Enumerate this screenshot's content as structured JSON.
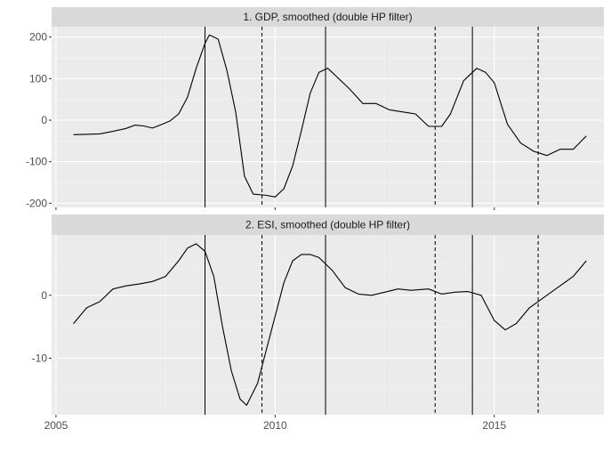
{
  "chart_data": [
    {
      "type": "line",
      "panel_title": "1. GDP, smoothed (double HP filter)",
      "xlim": [
        2004.9,
        2017.5
      ],
      "ylim": [
        -210,
        225
      ],
      "x_ticks": [
        2005,
        2010,
        2015
      ],
      "x_minor_ticks": [
        2007.5,
        2012.5
      ],
      "y_ticks": [
        -200,
        -100,
        0,
        100,
        200
      ],
      "y_tick_labels": [
        "-200",
        "-100",
        "0",
        "100",
        "200"
      ],
      "y_minor_ticks": [
        -150,
        -50,
        50,
        150
      ],
      "grid": true,
      "series": [
        {
          "color": "#000000",
          "x": [
            2005.4,
            2005.7,
            2006.0,
            2006.3,
            2006.6,
            2006.8,
            2007.0,
            2007.2,
            2007.4,
            2007.6,
            2007.8,
            2008.0,
            2008.2,
            2008.4,
            2008.5,
            2008.7,
            2008.9,
            2009.1,
            2009.3,
            2009.5,
            2009.8,
            2010.0,
            2010.2,
            2010.4,
            2010.6,
            2010.8,
            2011.0,
            2011.2,
            2011.4,
            2011.7,
            2012.0,
            2012.3,
            2012.6,
            2012.9,
            2013.2,
            2013.5,
            2013.8,
            2014.0,
            2014.3,
            2014.6,
            2014.8,
            2015.0,
            2015.3,
            2015.6,
            2015.9,
            2016.2,
            2016.5,
            2016.8,
            2017.1
          ],
          "y": [
            -35,
            -34,
            -33,
            -27,
            -20,
            -12,
            -14,
            -19,
            -11,
            -2,
            15,
            55,
            125,
            185,
            205,
            195,
            120,
            20,
            -135,
            -178,
            -181,
            -185,
            -165,
            -110,
            -25,
            65,
            115,
            125,
            105,
            75,
            40,
            40,
            25,
            20,
            15,
            -15,
            -15,
            15,
            95,
            125,
            115,
            90,
            -10,
            -55,
            -75,
            -85,
            -70,
            -70,
            -38
          ]
        }
      ],
      "vlines": [
        {
          "x": 2008.4,
          "style": "solid"
        },
        {
          "x": 2009.7,
          "style": "dashed"
        },
        {
          "x": 2011.15,
          "style": "solid"
        },
        {
          "x": 2013.65,
          "style": "dashed"
        },
        {
          "x": 2014.5,
          "style": "solid"
        },
        {
          "x": 2016.0,
          "style": "dashed"
        }
      ]
    },
    {
      "type": "line",
      "panel_title": "2. ESI, smoothed (double HP filter)",
      "xlim": [
        2004.9,
        2017.5
      ],
      "ylim": [
        -19,
        9.6
      ],
      "x_ticks": [
        2005,
        2010,
        2015
      ],
      "x_tick_labels": [
        "2005",
        "2010",
        "2015"
      ],
      "x_minor_ticks": [
        2007.5,
        2012.5
      ],
      "y_ticks": [
        -10,
        0
      ],
      "y_tick_labels": [
        "-10",
        "0"
      ],
      "y_minor_ticks": [
        -15,
        -5,
        5
      ],
      "grid": true,
      "series": [
        {
          "color": "#000000",
          "x": [
            2005.4,
            2005.7,
            2006.0,
            2006.3,
            2006.6,
            2006.9,
            2007.2,
            2007.5,
            2007.8,
            2008.0,
            2008.2,
            2008.4,
            2008.6,
            2008.8,
            2009.0,
            2009.2,
            2009.35,
            2009.6,
            2009.9,
            2010.2,
            2010.4,
            2010.6,
            2010.8,
            2011.0,
            2011.3,
            2011.6,
            2011.9,
            2012.2,
            2012.5,
            2012.8,
            2013.1,
            2013.5,
            2013.8,
            2014.1,
            2014.4,
            2014.7,
            2015.0,
            2015.25,
            2015.5,
            2015.8,
            2016.1,
            2016.5,
            2016.8,
            2017.1
          ],
          "y": [
            -4.5,
            -2,
            -1,
            1,
            1.5,
            1.8,
            2.2,
            3,
            5.5,
            7.5,
            8.2,
            7,
            3,
            -5,
            -12,
            -16.5,
            -17.5,
            -14,
            -6,
            2,
            5.5,
            6.5,
            6.5,
            6,
            4,
            1.2,
            0.2,
            0,
            0.5,
            1,
            0.8,
            1,
            0.2,
            0.5,
            0.6,
            0,
            -4,
            -5.5,
            -4.5,
            -2,
            -0.5,
            1.5,
            3,
            5.5
          ]
        }
      ],
      "vlines": [
        {
          "x": 2008.4,
          "style": "solid"
        },
        {
          "x": 2009.7,
          "style": "dashed"
        },
        {
          "x": 2011.15,
          "style": "solid"
        },
        {
          "x": 2013.65,
          "style": "dashed"
        },
        {
          "x": 2014.5,
          "style": "solid"
        },
        {
          "x": 2016.0,
          "style": "dashed"
        }
      ]
    }
  ],
  "colors": {
    "panel_background": "#ebebeb",
    "strip_background": "#d9d9d9",
    "grid_major": "#ffffff",
    "grid_minor": "#f5f5f5",
    "line": "#000000",
    "tick_text": "#4d4d4d",
    "strip_text": "#1a1a1a"
  }
}
